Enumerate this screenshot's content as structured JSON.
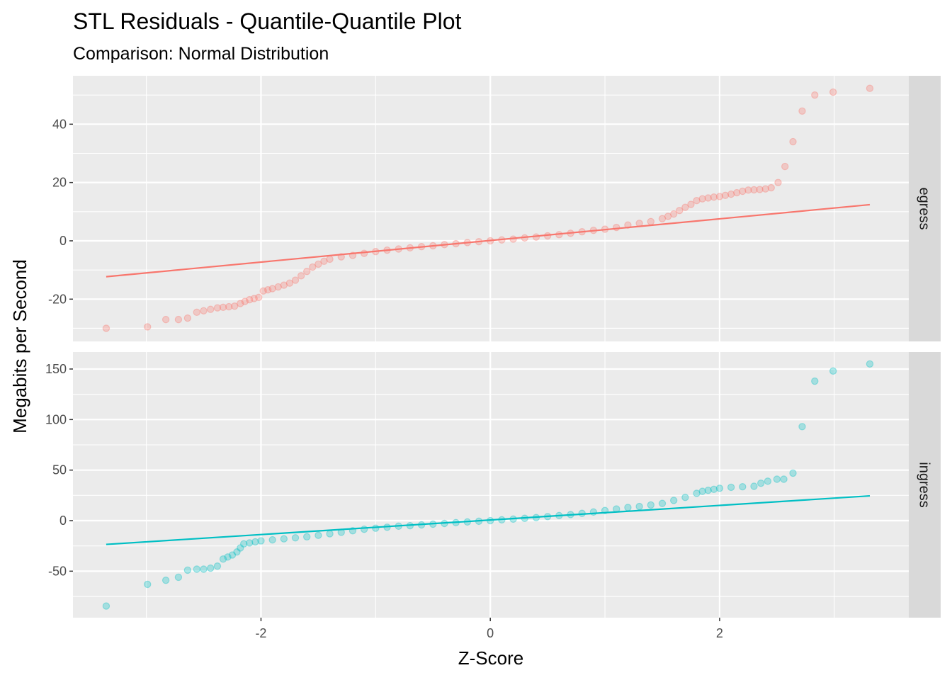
{
  "chart_data": {
    "type": "scatter",
    "title": "STL Residuals - Quantile-Quantile Plot",
    "subtitle": "Comparison: Normal Distribution",
    "xlabel": "Z-Score",
    "ylabel": "Megabits per Second",
    "xlim": [
      -3.64,
      3.65
    ],
    "x_ticks": [
      -2,
      0,
      2
    ],
    "grid": true,
    "facets": [
      {
        "name": "egress",
        "color": "#F8766D",
        "ylim": [
          -34.5,
          56.6
        ],
        "y_ticks": [
          -20,
          0,
          20,
          40
        ],
        "reference_line": {
          "x": [
            -3.35,
            3.31
          ],
          "y": [
            -12.3,
            12.4
          ]
        },
        "points": [
          [
            -3.35,
            -30
          ],
          [
            -2.99,
            -29.5
          ],
          [
            -2.83,
            -27
          ],
          [
            -2.72,
            -27
          ],
          [
            -2.64,
            -26.5
          ],
          [
            -2.56,
            -24.5
          ],
          [
            -2.5,
            -24
          ],
          [
            -2.44,
            -23.5
          ],
          [
            -2.38,
            -23
          ],
          [
            -2.33,
            -22.8
          ],
          [
            -2.28,
            -22.6
          ],
          [
            -2.23,
            -22.4
          ],
          [
            -2.18,
            -21.5
          ],
          [
            -2.14,
            -20.8
          ],
          [
            -2.1,
            -20.2
          ],
          [
            -2.06,
            -19.8
          ],
          [
            -2.02,
            -19.4
          ],
          [
            -1.98,
            -17.2
          ],
          [
            -1.94,
            -16.8
          ],
          [
            -1.9,
            -16.4
          ],
          [
            -1.85,
            -15.8
          ],
          [
            -1.8,
            -15.2
          ],
          [
            -1.75,
            -14.5
          ],
          [
            -1.7,
            -13.5
          ],
          [
            -1.65,
            -12
          ],
          [
            -1.6,
            -10.5
          ],
          [
            -1.55,
            -9
          ],
          [
            -1.5,
            -8
          ],
          [
            -1.45,
            -7
          ],
          [
            -1.4,
            -6.3
          ],
          [
            -1.3,
            -5.5
          ],
          [
            -1.2,
            -5
          ],
          [
            -1.1,
            -4.3
          ],
          [
            -1.0,
            -3.7
          ],
          [
            -0.9,
            -3.2
          ],
          [
            -0.8,
            -2.8
          ],
          [
            -0.7,
            -2.4
          ],
          [
            -0.6,
            -2
          ],
          [
            -0.5,
            -1.7
          ],
          [
            -0.4,
            -1.3
          ],
          [
            -0.3,
            -1
          ],
          [
            -0.2,
            -0.6
          ],
          [
            -0.1,
            -0.3
          ],
          [
            0,
            0
          ],
          [
            0.1,
            0.3
          ],
          [
            0.2,
            0.6
          ],
          [
            0.3,
            1
          ],
          [
            0.4,
            1.3
          ],
          [
            0.5,
            1.7
          ],
          [
            0.6,
            2.1
          ],
          [
            0.7,
            2.6
          ],
          [
            0.8,
            3.1
          ],
          [
            0.9,
            3.6
          ],
          [
            1.0,
            4
          ],
          [
            1.1,
            4.6
          ],
          [
            1.2,
            5.4
          ],
          [
            1.3,
            6
          ],
          [
            1.4,
            6.6
          ],
          [
            1.5,
            7.6
          ],
          [
            1.55,
            8.4
          ],
          [
            1.6,
            9.2
          ],
          [
            1.65,
            10.4
          ],
          [
            1.7,
            11.5
          ],
          [
            1.75,
            12.5
          ],
          [
            1.8,
            13.8
          ],
          [
            1.85,
            14.4
          ],
          [
            1.9,
            14.7
          ],
          [
            1.95,
            15
          ],
          [
            2.0,
            15.2
          ],
          [
            2.05,
            15.6
          ],
          [
            2.1,
            16
          ],
          [
            2.15,
            16.5
          ],
          [
            2.2,
            17
          ],
          [
            2.25,
            17.4
          ],
          [
            2.3,
            17.5
          ],
          [
            2.35,
            17.6
          ],
          [
            2.4,
            17.8
          ],
          [
            2.45,
            18.2
          ],
          [
            2.51,
            20
          ],
          [
            2.57,
            25.5
          ],
          [
            2.64,
            34
          ],
          [
            2.72,
            44.5
          ],
          [
            2.83,
            50
          ],
          [
            2.99,
            51
          ],
          [
            3.31,
            52.3
          ]
        ]
      },
      {
        "name": "ingress",
        "color": "#00BFC4",
        "ylim": [
          -96,
          166.8
        ],
        "y_ticks": [
          -50,
          0,
          50,
          100,
          150
        ],
        "reference_line": {
          "x": [
            -3.35,
            3.31
          ],
          "y": [
            -23.5,
            24.5
          ]
        },
        "points": [
          [
            -3.35,
            -84.5
          ],
          [
            -2.99,
            -63
          ],
          [
            -2.83,
            -59
          ],
          [
            -2.72,
            -56
          ],
          [
            -2.64,
            -49
          ],
          [
            -2.56,
            -48
          ],
          [
            -2.5,
            -48
          ],
          [
            -2.44,
            -47
          ],
          [
            -2.38,
            -45
          ],
          [
            -2.33,
            -38
          ],
          [
            -2.29,
            -36
          ],
          [
            -2.25,
            -34
          ],
          [
            -2.21,
            -31
          ],
          [
            -2.18,
            -27
          ],
          [
            -2.15,
            -23
          ],
          [
            -2.1,
            -22
          ],
          [
            -2.05,
            -21
          ],
          [
            -2.0,
            -20
          ],
          [
            -1.9,
            -19
          ],
          [
            -1.8,
            -18
          ],
          [
            -1.7,
            -17
          ],
          [
            -1.6,
            -16
          ],
          [
            -1.5,
            -14.5
          ],
          [
            -1.4,
            -13
          ],
          [
            -1.3,
            -11.5
          ],
          [
            -1.2,
            -10
          ],
          [
            -1.1,
            -8.5
          ],
          [
            -1.0,
            -7.5
          ],
          [
            -0.9,
            -6.5
          ],
          [
            -0.8,
            -5.5
          ],
          [
            -0.7,
            -5
          ],
          [
            -0.6,
            -4.2
          ],
          [
            -0.5,
            -3.5
          ],
          [
            -0.4,
            -2.8
          ],
          [
            -0.3,
            -2
          ],
          [
            -0.2,
            -1.3
          ],
          [
            -0.1,
            -0.6
          ],
          [
            0,
            0
          ],
          [
            0.1,
            0.8
          ],
          [
            0.2,
            1.5
          ],
          [
            0.3,
            2.3
          ],
          [
            0.4,
            3
          ],
          [
            0.5,
            4
          ],
          [
            0.6,
            5
          ],
          [
            0.7,
            6
          ],
          [
            0.8,
            7.2
          ],
          [
            0.9,
            8.5
          ],
          [
            1.0,
            10
          ],
          [
            1.1,
            11.5
          ],
          [
            1.2,
            13
          ],
          [
            1.3,
            14
          ],
          [
            1.4,
            15.5
          ],
          [
            1.5,
            17
          ],
          [
            1.6,
            20
          ],
          [
            1.7,
            23
          ],
          [
            1.8,
            27
          ],
          [
            1.85,
            29
          ],
          [
            1.9,
            30
          ],
          [
            1.95,
            31
          ],
          [
            2.0,
            32
          ],
          [
            2.1,
            33
          ],
          [
            2.2,
            33.5
          ],
          [
            2.3,
            34
          ],
          [
            2.36,
            37
          ],
          [
            2.42,
            39
          ],
          [
            2.5,
            41
          ],
          [
            2.56,
            41
          ],
          [
            2.64,
            47
          ],
          [
            2.72,
            93
          ],
          [
            2.83,
            138
          ],
          [
            2.99,
            148
          ],
          [
            3.31,
            155
          ]
        ]
      }
    ]
  }
}
